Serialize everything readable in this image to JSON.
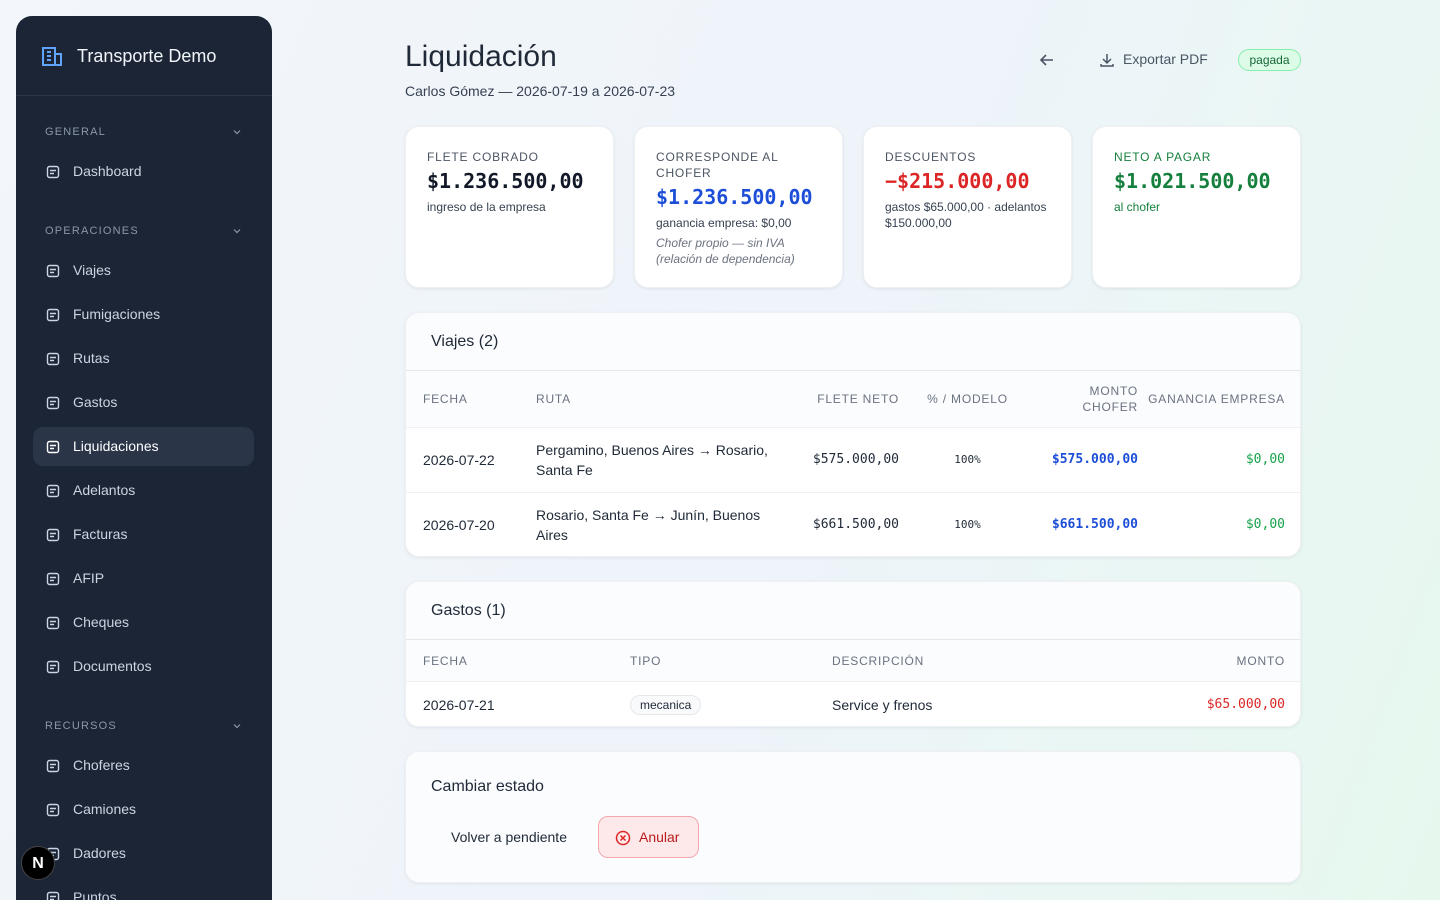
{
  "sidebar": {
    "brand": "Transporte Demo",
    "sections": [
      {
        "title": "GENERAL",
        "items": [
          "Dashboard"
        ]
      },
      {
        "title": "OPERACIONES",
        "items": [
          "Viajes",
          "Fumigaciones",
          "Rutas",
          "Gastos",
          "Liquidaciones",
          "Adelantos",
          "Facturas",
          "AFIP",
          "Cheques",
          "Documentos"
        ]
      },
      {
        "title": "RECURSOS",
        "items": [
          "Choferes",
          "Camiones",
          "Dadores",
          "Puntos"
        ]
      }
    ]
  },
  "header": {
    "title": "Liquidación",
    "subtitle": "Carlos Gómez — 2026-07-19 a 2026-07-23",
    "export": "Exportar PDF",
    "status": "pagada"
  },
  "cards": [
    {
      "label": "FLETE COBRADO",
      "value": "$1.236.500,00",
      "notes": [
        "ingreso de la empresa"
      ]
    },
    {
      "label": "CORRESPONDE AL CHOFER",
      "value": "$1.236.500,00",
      "notes": [
        "ganancia empresa: $0,00",
        "Chofer propio — sin IVA (relación de dependencia)"
      ]
    },
    {
      "label": "DESCUENTOS",
      "value": "−$215.000,00",
      "notes": [
        "gastos $65.000,00 · adelantos $150.000,00"
      ]
    },
    {
      "label": "NETO A PAGAR",
      "value": "$1.021.500,00",
      "notes": [
        "al chofer"
      ]
    }
  ],
  "viajes": {
    "title": "Viajes (2)",
    "headers": [
      "FECHA",
      "RUTA",
      "FLETE NETO",
      "% / MODELO",
      "MONTO CHOFER",
      "GANANCIA EMPRESA"
    ],
    "rows": [
      [
        "2026-07-22",
        "Pergamino, Buenos Aires → Rosario, Santa Fe",
        "$575.000,00",
        "100%",
        "$575.000,00",
        "$0,00"
      ],
      [
        "2026-07-20",
        "Rosario, Santa Fe → Junín, Buenos Aires",
        "$661.500,00",
        "100%",
        "$661.500,00",
        "$0,00"
      ]
    ]
  },
  "gastos": {
    "title": "Gastos (1)",
    "headers": [
      "FECHA",
      "TIPO",
      "DESCRIPCIÓN",
      "MONTO"
    ],
    "rows": [
      [
        "2026-07-21",
        "mecanica",
        "Service y frenos",
        "$65.000,00"
      ]
    ]
  },
  "estado": {
    "title": "Cambiar estado",
    "pending": "Volver a pendiente",
    "cancel": "Anular"
  }
}
